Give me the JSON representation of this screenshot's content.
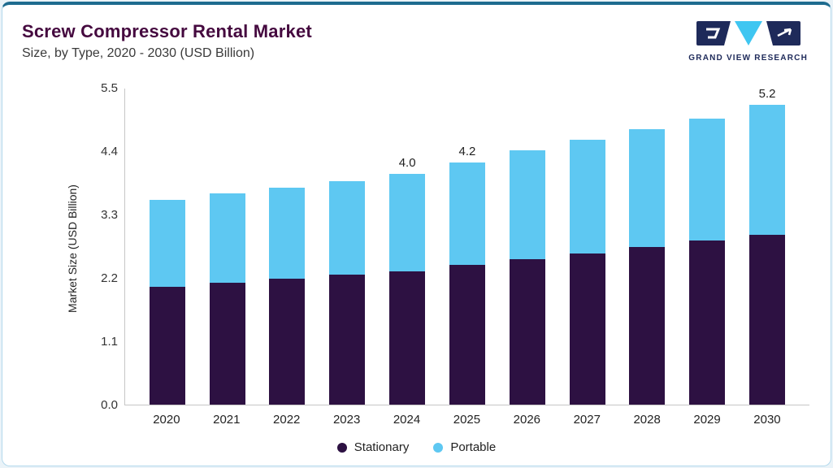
{
  "header": {
    "title": "Screw Compressor Rental Market",
    "subtitle": "Size, by Type, 2020 - 2030 (USD Billion)",
    "logo_text": "GRAND VIEW RESEARCH"
  },
  "colors": {
    "accent_top": "#1d6b8f",
    "card_border": "#b3d9ec",
    "title": "#45093f",
    "logo_navy": "#1e2a5a",
    "logo_cyan": "#3fc6f1"
  },
  "chart_data": {
    "type": "bar",
    "stacked": true,
    "title": "Screw Compressor Rental Market Size, by Type, 2020 - 2030 (USD Billion)",
    "ylabel": "Market Size (USD Billion)",
    "xlabel": "",
    "ylim": [
      0,
      5.5
    ],
    "y_ticks": [
      "0.0",
      "1.1",
      "2.2",
      "3.3",
      "4.4",
      "5.5"
    ],
    "grid": false,
    "legend_position": "bottom",
    "categories": [
      "2020",
      "2021",
      "2022",
      "2023",
      "2024",
      "2025",
      "2026",
      "2027",
      "2028",
      "2029",
      "2030"
    ],
    "series": [
      {
        "name": "Stationary",
        "color": "#2d1142",
        "values": [
          2.05,
          2.12,
          2.18,
          2.25,
          2.32,
          2.42,
          2.52,
          2.62,
          2.73,
          2.85,
          2.95
        ]
      },
      {
        "name": "Portable",
        "color": "#5ec8f2",
        "values": [
          1.5,
          1.55,
          1.58,
          1.63,
          1.68,
          1.78,
          1.9,
          1.98,
          2.05,
          2.12,
          2.25
        ]
      }
    ],
    "totals": [
      3.55,
      3.67,
      3.76,
      3.88,
      4.0,
      4.2,
      4.42,
      4.6,
      4.78,
      4.97,
      5.2
    ],
    "data_labels": [
      "",
      "",
      "",
      "",
      "4.0",
      "4.2",
      "",
      "",
      "",
      "",
      "5.2"
    ]
  }
}
